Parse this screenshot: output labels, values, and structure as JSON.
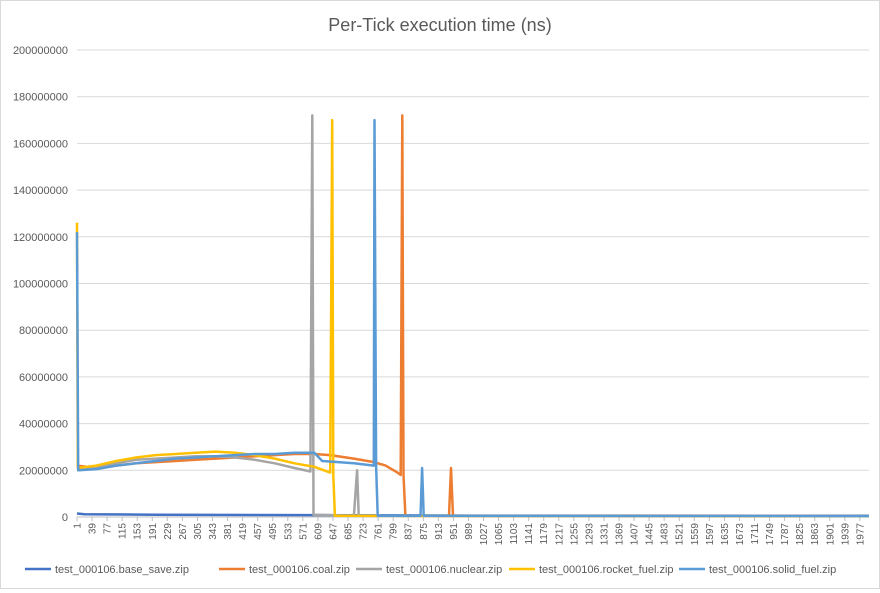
{
  "chart_data": {
    "type": "line",
    "title": "Per-Tick execution time (ns)",
    "xlabel": "",
    "ylabel": "",
    "ylim": [
      0,
      200000000
    ],
    "y_ticks": [
      0,
      20000000,
      40000000,
      60000000,
      80000000,
      100000000,
      120000000,
      140000000,
      160000000,
      180000000,
      200000000
    ],
    "x_range": [
      1,
      2000
    ],
    "x_tick_labels": [
      1,
      39,
      77,
      115,
      153,
      191,
      229,
      267,
      305,
      343,
      381,
      419,
      457,
      495,
      533,
      571,
      609,
      647,
      685,
      723,
      761,
      799,
      837,
      875,
      913,
      951,
      989,
      1027,
      1065,
      1103,
      1141,
      1179,
      1217,
      1255,
      1293,
      1331,
      1369,
      1407,
      1445,
      1483,
      1521,
      1559,
      1597,
      1635,
      1673,
      1711,
      1749,
      1787,
      1825,
      1863,
      1901,
      1939,
      1977
    ],
    "grid": true,
    "legend_position": "bottom",
    "series": [
      {
        "name": "test_000106.base_save.zip",
        "color": "#4472c4",
        "points": [
          [
            1,
            1500000
          ],
          [
            20,
            1200000
          ],
          [
            200,
            1000000
          ],
          [
            600,
            800000
          ],
          [
            1000,
            600000
          ],
          [
            2000,
            500000
          ]
        ]
      },
      {
        "name": "test_000106.coal.zip",
        "color": "#ed7d31",
        "points": [
          [
            1,
            22000000
          ],
          [
            50,
            21000000
          ],
          [
            100,
            22000000
          ],
          [
            150,
            23000000
          ],
          [
            200,
            23500000
          ],
          [
            250,
            24000000
          ],
          [
            300,
            24500000
          ],
          [
            350,
            25000000
          ],
          [
            400,
            25500000
          ],
          [
            450,
            26000000
          ],
          [
            500,
            26500000
          ],
          [
            550,
            27000000
          ],
          [
            600,
            27000000
          ],
          [
            640,
            26500000
          ],
          [
            700,
            25000000
          ],
          [
            750,
            23500000
          ],
          [
            780,
            22000000
          ],
          [
            800,
            20000000
          ],
          [
            810,
            19000000
          ],
          [
            818,
            18000000
          ],
          [
            822,
            172000000
          ],
          [
            825,
            18000000
          ],
          [
            830,
            500000
          ],
          [
            940,
            600000
          ],
          [
            945,
            21000000
          ],
          [
            950,
            500000
          ],
          [
            2000,
            400000
          ]
        ]
      },
      {
        "name": "test_000106.nuclear.zip",
        "color": "#a5a5a5",
        "points": [
          [
            1,
            20000000
          ],
          [
            50,
            21000000
          ],
          [
            100,
            23000000
          ],
          [
            150,
            24500000
          ],
          [
            200,
            25000000
          ],
          [
            250,
            25500000
          ],
          [
            300,
            26000000
          ],
          [
            350,
            26000000
          ],
          [
            400,
            25500000
          ],
          [
            450,
            24500000
          ],
          [
            500,
            23000000
          ],
          [
            550,
            21000000
          ],
          [
            590,
            19500000
          ],
          [
            595,
            172000000
          ],
          [
            598,
            1000000
          ],
          [
            700,
            600000
          ],
          [
            708,
            20000000
          ],
          [
            712,
            600000
          ],
          [
            2000,
            300000
          ]
        ]
      },
      {
        "name": "test_000106.rocket_fuel.zip",
        "color": "#ffc000",
        "points": [
          [
            1,
            126000000
          ],
          [
            3,
            21000000
          ],
          [
            50,
            22000000
          ],
          [
            100,
            24000000
          ],
          [
            150,
            25500000
          ],
          [
            200,
            26500000
          ],
          [
            250,
            27000000
          ],
          [
            300,
            27500000
          ],
          [
            350,
            28000000
          ],
          [
            400,
            27500000
          ],
          [
            450,
            26500000
          ],
          [
            500,
            25000000
          ],
          [
            550,
            23000000
          ],
          [
            600,
            21500000
          ],
          [
            640,
            19000000
          ],
          [
            645,
            170000000
          ],
          [
            648,
            18000000
          ],
          [
            652,
            500000
          ],
          [
            2000,
            300000
          ]
        ]
      },
      {
        "name": "test_000106.solid_fuel.zip",
        "color": "#5b9bd5",
        "points": [
          [
            1,
            122000000
          ],
          [
            4,
            20000000
          ],
          [
            50,
            20500000
          ],
          [
            100,
            22000000
          ],
          [
            150,
            23000000
          ],
          [
            200,
            24000000
          ],
          [
            250,
            25000000
          ],
          [
            300,
            25500000
          ],
          [
            350,
            26000000
          ],
          [
            400,
            26500000
          ],
          [
            450,
            27000000
          ],
          [
            500,
            27000000
          ],
          [
            550,
            27500000
          ],
          [
            600,
            27500000
          ],
          [
            620,
            24000000
          ],
          [
            700,
            23000000
          ],
          [
            750,
            22000000
          ],
          [
            752,
            170000000
          ],
          [
            756,
            22000000
          ],
          [
            760,
            500000
          ],
          [
            868,
            500000
          ],
          [
            872,
            21000000
          ],
          [
            876,
            500000
          ],
          [
            2000,
            400000
          ]
        ]
      }
    ]
  }
}
